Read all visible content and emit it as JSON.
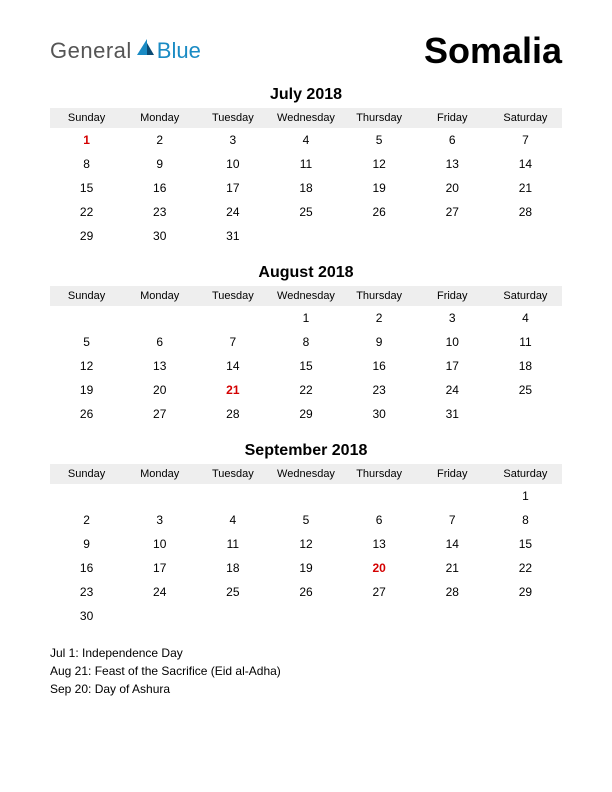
{
  "logo": {
    "part1": "General",
    "part2": "Blue"
  },
  "country": "Somalia",
  "day_headers": [
    "Sunday",
    "Monday",
    "Tuesday",
    "Wednesday",
    "Thursday",
    "Friday",
    "Saturday"
  ],
  "colors": {
    "holiday": "#d40000",
    "header_bg": "#eeeeee",
    "logo_gray": "#555555",
    "logo_blue": "#1a8bc4",
    "logo_sail_dark": "#0a4a73",
    "text": "#000000",
    "background": "#ffffff"
  },
  "months": [
    {
      "title": "July 2018",
      "weeks": [
        [
          {
            "d": 1,
            "h": true
          },
          {
            "d": 2
          },
          {
            "d": 3
          },
          {
            "d": 4
          },
          {
            "d": 5
          },
          {
            "d": 6
          },
          {
            "d": 7
          }
        ],
        [
          {
            "d": 8
          },
          {
            "d": 9
          },
          {
            "d": 10
          },
          {
            "d": 11
          },
          {
            "d": 12
          },
          {
            "d": 13
          },
          {
            "d": 14
          }
        ],
        [
          {
            "d": 15
          },
          {
            "d": 16
          },
          {
            "d": 17
          },
          {
            "d": 18
          },
          {
            "d": 19
          },
          {
            "d": 20
          },
          {
            "d": 21
          }
        ],
        [
          {
            "d": 22
          },
          {
            "d": 23
          },
          {
            "d": 24
          },
          {
            "d": 25
          },
          {
            "d": 26
          },
          {
            "d": 27
          },
          {
            "d": 28
          }
        ],
        [
          {
            "d": 29
          },
          {
            "d": 30
          },
          {
            "d": 31
          },
          {
            "d": ""
          },
          {
            "d": ""
          },
          {
            "d": ""
          },
          {
            "d": ""
          }
        ]
      ]
    },
    {
      "title": "August 2018",
      "weeks": [
        [
          {
            "d": ""
          },
          {
            "d": ""
          },
          {
            "d": ""
          },
          {
            "d": 1
          },
          {
            "d": 2
          },
          {
            "d": 3
          },
          {
            "d": 4
          }
        ],
        [
          {
            "d": 5
          },
          {
            "d": 6
          },
          {
            "d": 7
          },
          {
            "d": 8
          },
          {
            "d": 9
          },
          {
            "d": 10
          },
          {
            "d": 11
          }
        ],
        [
          {
            "d": 12
          },
          {
            "d": 13
          },
          {
            "d": 14
          },
          {
            "d": 15
          },
          {
            "d": 16
          },
          {
            "d": 17
          },
          {
            "d": 18
          }
        ],
        [
          {
            "d": 19
          },
          {
            "d": 20
          },
          {
            "d": 21,
            "h": true
          },
          {
            "d": 22
          },
          {
            "d": 23
          },
          {
            "d": 24
          },
          {
            "d": 25
          }
        ],
        [
          {
            "d": 26
          },
          {
            "d": 27
          },
          {
            "d": 28
          },
          {
            "d": 29
          },
          {
            "d": 30
          },
          {
            "d": 31
          },
          {
            "d": ""
          }
        ]
      ]
    },
    {
      "title": "September 2018",
      "weeks": [
        [
          {
            "d": ""
          },
          {
            "d": ""
          },
          {
            "d": ""
          },
          {
            "d": ""
          },
          {
            "d": ""
          },
          {
            "d": ""
          },
          {
            "d": 1
          }
        ],
        [
          {
            "d": 2
          },
          {
            "d": 3
          },
          {
            "d": 4
          },
          {
            "d": 5
          },
          {
            "d": 6
          },
          {
            "d": 7
          },
          {
            "d": 8
          }
        ],
        [
          {
            "d": 9
          },
          {
            "d": 10
          },
          {
            "d": 11
          },
          {
            "d": 12
          },
          {
            "d": 13
          },
          {
            "d": 14
          },
          {
            "d": 15
          }
        ],
        [
          {
            "d": 16
          },
          {
            "d": 17
          },
          {
            "d": 18
          },
          {
            "d": 19
          },
          {
            "d": 20,
            "h": true
          },
          {
            "d": 21
          },
          {
            "d": 22
          }
        ],
        [
          {
            "d": 23
          },
          {
            "d": 24
          },
          {
            "d": 25
          },
          {
            "d": 26
          },
          {
            "d": 27
          },
          {
            "d": 28
          },
          {
            "d": 29
          }
        ],
        [
          {
            "d": 30
          },
          {
            "d": ""
          },
          {
            "d": ""
          },
          {
            "d": ""
          },
          {
            "d": ""
          },
          {
            "d": ""
          },
          {
            "d": ""
          }
        ]
      ]
    }
  ],
  "holidays": [
    "Jul 1: Independence Day",
    "Aug 21: Feast of the Sacrifice (Eid al-Adha)",
    "Sep 20: Day of Ashura"
  ]
}
